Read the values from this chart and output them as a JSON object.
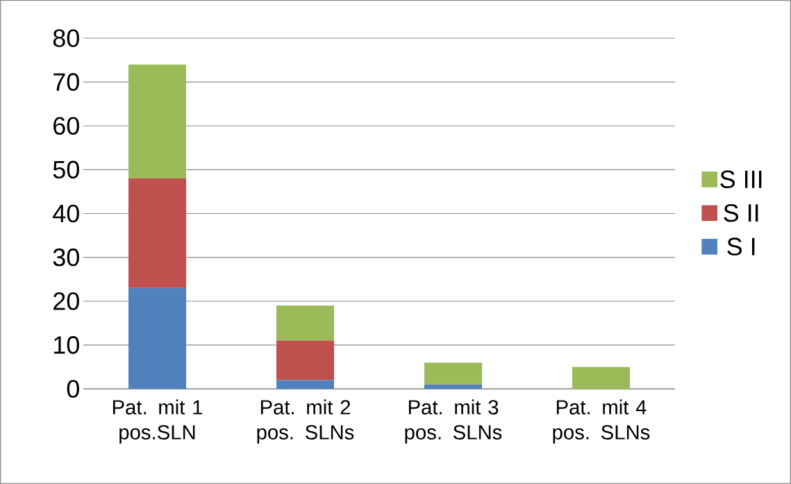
{
  "chart_data": {
    "type": "bar",
    "stacked": true,
    "categories": [
      "Pat. mit 1 pos.SLN",
      "Pat. mit 2 pos. SLNs",
      "Pat. mit 3 pos. SLNs",
      "Pat. mit 4 pos. SLNs"
    ],
    "series": [
      {
        "name": "S I",
        "color": "#4f81bd",
        "values": [
          23,
          2,
          1,
          0
        ]
      },
      {
        "name": "S II",
        "color": "#c0504d",
        "values": [
          25,
          9,
          0,
          0
        ]
      },
      {
        "name": "S III",
        "color": "#9bbb59",
        "values": [
          26,
          8,
          5,
          5
        ]
      }
    ],
    "ylim": [
      0,
      80
    ],
    "yticks": [
      0,
      10,
      20,
      30,
      40,
      50,
      60,
      70,
      80
    ],
    "grid": "y",
    "legend": "right"
  }
}
